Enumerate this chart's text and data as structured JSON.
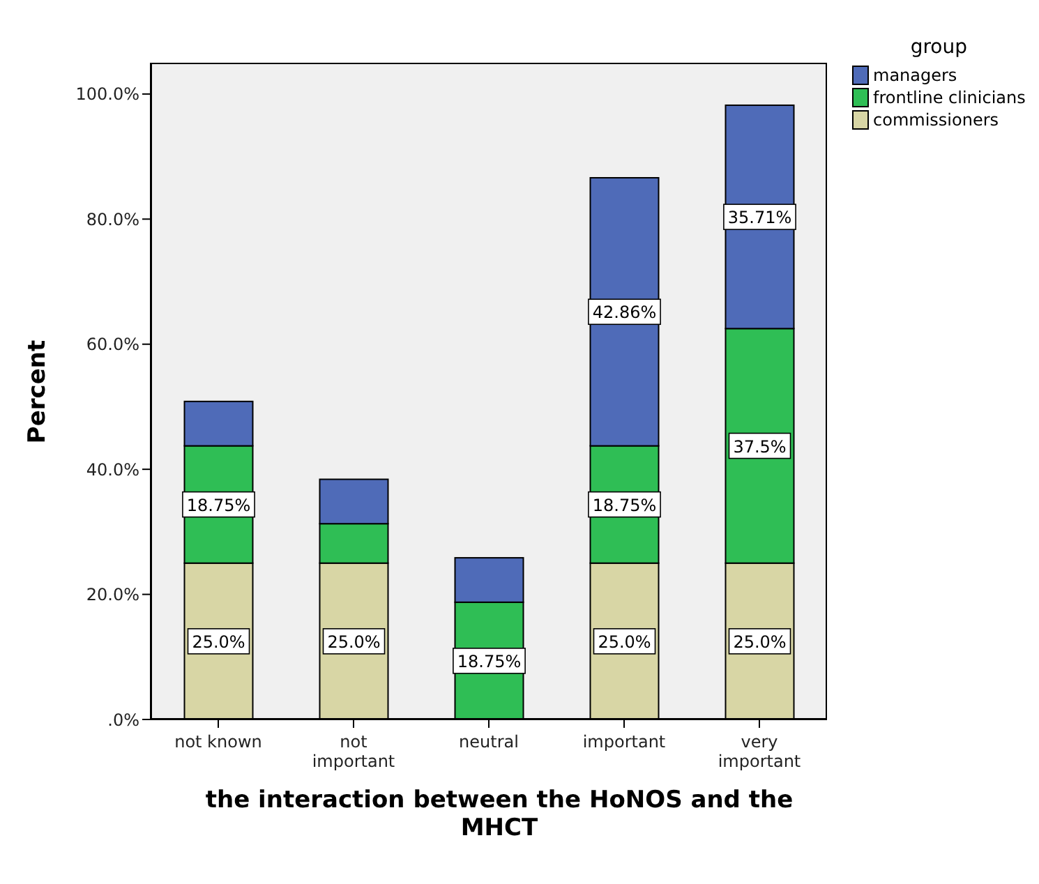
{
  "chart_data": {
    "type": "bar",
    "stacked": true,
    "xlabel": "the interaction between the HoNOS and the MHCT",
    "ylabel": "Percent",
    "legend_title": "group",
    "legend": "top right",
    "grid": false,
    "categories": [
      "not known",
      "not important",
      "neutral",
      "important",
      "very important"
    ],
    "ylim": [
      0,
      105
    ],
    "yticks": [
      {
        "value": 0,
        "label": ".0%"
      },
      {
        "value": 20,
        "label": "20.0%"
      },
      {
        "value": 40,
        "label": "40.0%"
      },
      {
        "value": 60,
        "label": "60.0%"
      },
      {
        "value": 80,
        "label": "80.0%"
      },
      {
        "value": 100,
        "label": "100.0%"
      }
    ],
    "series": [
      {
        "name": "commissioners",
        "color": "#d8d6a5",
        "values": [
          25.0,
          25.0,
          0,
          25.0,
          25.0
        ],
        "value_labels": [
          "25.0%",
          "25.0%",
          null,
          "25.0%",
          "25.0%"
        ]
      },
      {
        "name": "frontline clinicians",
        "color": "#2fbe55",
        "values": [
          18.75,
          6.3,
          18.75,
          18.75,
          37.5
        ],
        "value_labels": [
          "18.75%",
          null,
          "18.75%",
          "18.75%",
          "37.5%"
        ]
      },
      {
        "name": "managers",
        "color": "#4f6bb8",
        "values": [
          7.1,
          7.1,
          7.1,
          42.86,
          35.71
        ],
        "value_labels": [
          null,
          null,
          null,
          "42.86%",
          "35.71%"
        ]
      }
    ]
  }
}
